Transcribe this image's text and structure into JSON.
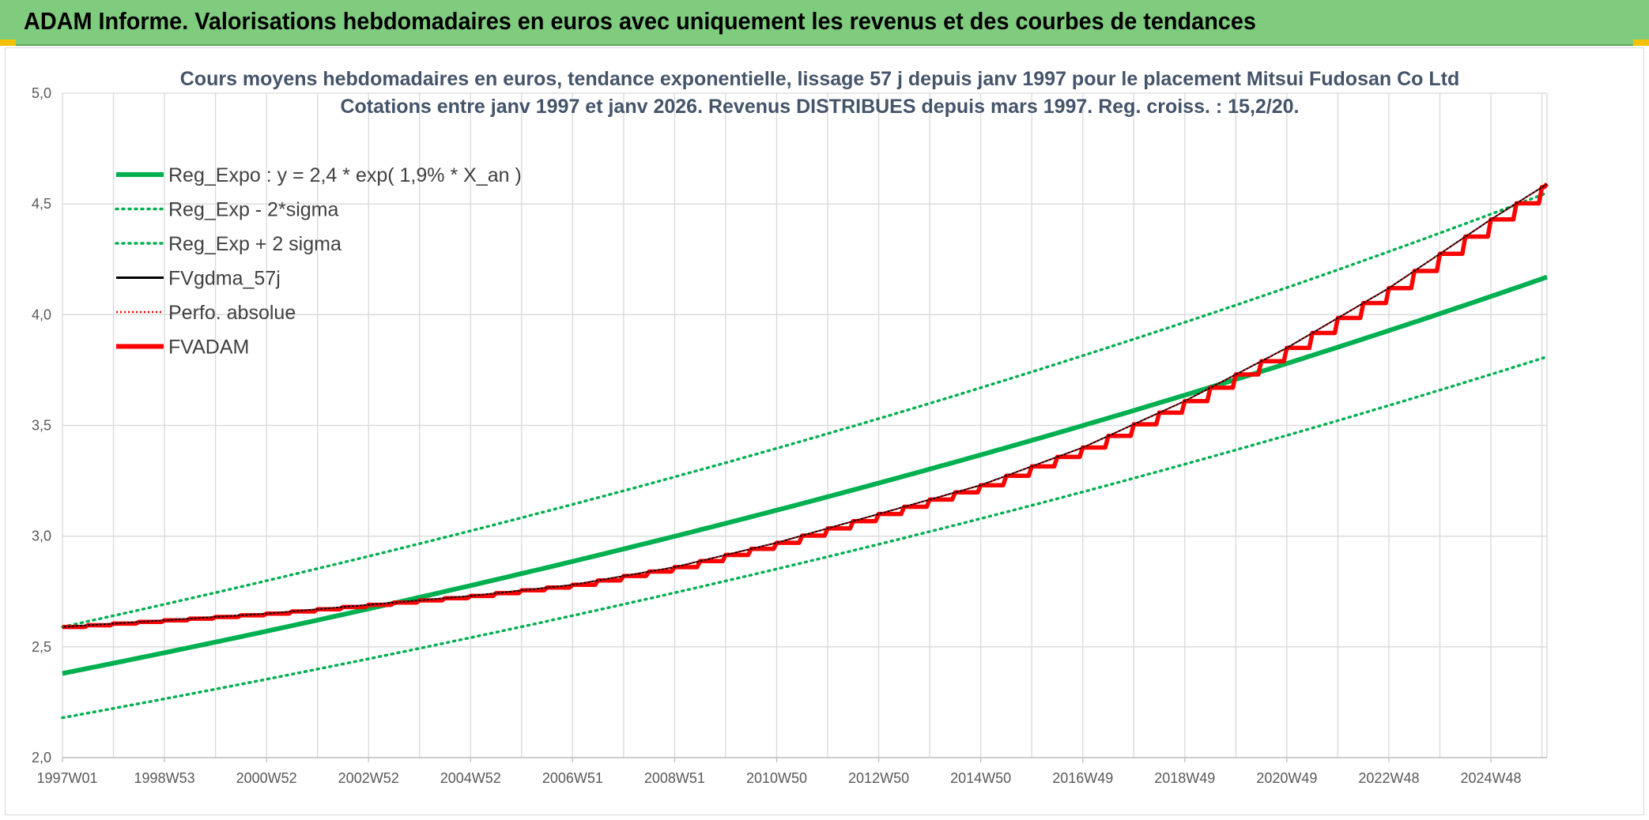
{
  "banner": {
    "title": "ADAM Informe. Valorisations hebdomadaires en euros avec uniquement les revenus et des courbes de tendances"
  },
  "colors": {
    "banner_bg": "#7fcc7f",
    "green": "#00b050",
    "red": "#ff0000",
    "black": "#000000",
    "grid": "#d9d9d9"
  },
  "chart_data": {
    "type": "line",
    "title": [
      "Cours moyens hebdomadaires en euros, tendance exponentielle, lissage 57 j depuis janv 1997 pour le placement Mitsui Fudosan Co Ltd",
      "Cotations entre janv 1997 et janv 2026. Revenus DISTRIBUES depuis mars 1997. Reg. croiss. : 15,2/20."
    ],
    "xlabel": "",
    "ylabel": "",
    "x_range": [
      1997.0,
      2026.1
    ],
    "ylim": [
      2.0,
      5.0
    ],
    "y_ticks": [
      "2,0",
      "2,5",
      "3,0",
      "3,5",
      "4,0",
      "4,5",
      "5,0"
    ],
    "y_tick_values": [
      2.0,
      2.5,
      3.0,
      3.5,
      4.0,
      4.5,
      5.0
    ],
    "x_tick_labels": [
      "1997W01",
      "1998W53",
      "2000W52",
      "2002W52",
      "2004W52",
      "2006W51",
      "2008W51",
      "2010W50",
      "2012W50",
      "2014W50",
      "2016W49",
      "2018W49",
      "2020W49",
      "2022W48",
      "2024W48"
    ],
    "x_tick_values": [
      1997.0,
      1999.0,
      2001.0,
      2003.0,
      2005.0,
      2007.0,
      2009.0,
      2011.0,
      2013.0,
      2015.0,
      2017.0,
      2019.0,
      2021.0,
      2023.0,
      2025.0
    ],
    "grid": true,
    "legend_position": "top-left",
    "series": [
      {
        "name": "Reg_Expo : y = 2,4 * exp( 1,9% *  X_an )",
        "style": "solid-thick",
        "color": "#00b050",
        "x": [
          1997.0,
          2026.1
        ],
        "y": [
          2.38,
          4.17
        ],
        "growth_rate": 0.019,
        "base": 2.4
      },
      {
        "name": "Reg_Exp - 2*sigma",
        "style": "dotted",
        "color": "#00b050",
        "x": [
          1997.0,
          2026.1
        ],
        "y": [
          2.18,
          3.81
        ]
      },
      {
        "name": "Reg_Exp + 2 sigma",
        "style": "dotted",
        "color": "#00b050",
        "x": [
          1997.0,
          2026.1
        ],
        "y": [
          2.59,
          4.55
        ]
      },
      {
        "name": "FVgdma_57j",
        "style": "solid-thin",
        "color": "#000000"
      },
      {
        "name": "Perfo. absolue",
        "style": "dotted-thin",
        "color": "#ff0000"
      },
      {
        "name": "FVADAM",
        "style": "solid-thick",
        "color": "#ff0000",
        "x": [
          1997.0,
          1999.0,
          2001.0,
          2003.0,
          2005.0,
          2007.0,
          2009.0,
          2011.0,
          2013.0,
          2015.0,
          2017.0,
          2019.0,
          2021.0,
          2023.0,
          2025.0,
          2026.1
        ],
        "y": [
          2.59,
          2.62,
          2.65,
          2.69,
          2.73,
          2.78,
          2.86,
          2.97,
          3.1,
          3.23,
          3.4,
          3.61,
          3.85,
          4.12,
          4.43,
          4.59
        ]
      }
    ]
  }
}
